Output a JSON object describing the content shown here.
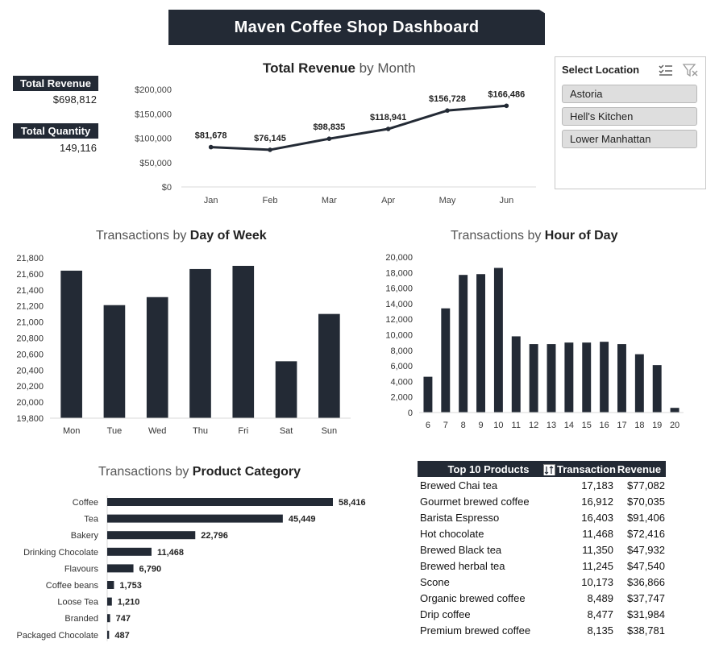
{
  "dashboard": {
    "title": "Maven Coffee Shop Dashboard"
  },
  "kpis": {
    "revenue_label": "Total Revenue",
    "revenue_value": "$698,812",
    "quantity_label": "Total Quantity",
    "quantity_value": "149,116"
  },
  "slicer": {
    "title": "Select Location",
    "icons": [
      "multi-select-icon",
      "clear-filter-icon"
    ],
    "items": [
      "Astoria",
      "Hell's Kitchen",
      "Lower Manhattan"
    ]
  },
  "revenue_chart": {
    "title_bold": "Total Revenue",
    "title_rest": "by Month"
  },
  "dow_chart": {
    "title_rest": "Transactions by",
    "title_bold": "Day of Week"
  },
  "hour_chart": {
    "title_rest": "Transactions by",
    "title_bold": "Hour of Day"
  },
  "category_chart": {
    "title_rest": "Transactions by",
    "title_bold": "Product Category"
  },
  "top_products": {
    "header": {
      "product": "Top 10 Products",
      "transactions": "Transaction",
      "revenue": "Revenue"
    },
    "sort_icon": "sort-icon",
    "rows": [
      {
        "product": "Brewed Chai tea",
        "transactions": "17,183",
        "revenue": "$77,082"
      },
      {
        "product": "Gourmet brewed coffee",
        "transactions": "16,912",
        "revenue": "$70,035"
      },
      {
        "product": "Barista Espresso",
        "transactions": "16,403",
        "revenue": "$91,406"
      },
      {
        "product": "Hot chocolate",
        "transactions": "11,468",
        "revenue": "$72,416"
      },
      {
        "product": "Brewed Black tea",
        "transactions": "11,350",
        "revenue": "$47,932"
      },
      {
        "product": "Brewed herbal tea",
        "transactions": "11,245",
        "revenue": "$47,540"
      },
      {
        "product": "Scone",
        "transactions": "10,173",
        "revenue": "$36,866"
      },
      {
        "product": "Organic brewed coffee",
        "transactions": "8,489",
        "revenue": "$37,747"
      },
      {
        "product": "Drip coffee",
        "transactions": "8,477",
        "revenue": "$31,984"
      },
      {
        "product": "Premium brewed coffee",
        "transactions": "8,135",
        "revenue": "$38,781"
      }
    ]
  },
  "colors": {
    "dark": "#232a35",
    "grid": "#d9d9d9"
  },
  "chart_data": [
    {
      "type": "line",
      "title": "Total Revenue by Month",
      "categories": [
        "Jan",
        "Feb",
        "Mar",
        "Apr",
        "May",
        "Jun"
      ],
      "values": [
        81678,
        76145,
        98835,
        118941,
        156728,
        166486
      ],
      "data_labels": [
        "$81,678",
        "$76,145",
        "$98,835",
        "$118,941",
        "$156,728",
        "$166,486"
      ],
      "yticks": [
        "$0",
        "$50,000",
        "$100,000",
        "$150,000",
        "$200,000"
      ],
      "ylim": [
        0,
        200000
      ],
      "grid": false
    },
    {
      "type": "bar",
      "title": "Transactions by Day of Week",
      "categories": [
        "Mon",
        "Tue",
        "Wed",
        "Thu",
        "Fri",
        "Sat",
        "Sun"
      ],
      "values": [
        21640,
        21210,
        21310,
        21660,
        21700,
        20510,
        21100
      ],
      "yticks": [
        "19,800",
        "20,000",
        "20,200",
        "20,400",
        "20,600",
        "20,800",
        "21,000",
        "21,200",
        "21,400",
        "21,600",
        "21,800"
      ],
      "ylim": [
        19800,
        21800
      ],
      "grid": false
    },
    {
      "type": "bar",
      "title": "Transactions by Hour of Day",
      "categories": [
        "6",
        "7",
        "8",
        "9",
        "10",
        "11",
        "12",
        "13",
        "14",
        "15",
        "16",
        "17",
        "18",
        "19",
        "20"
      ],
      "values": [
        4600,
        13400,
        17700,
        17800,
        18600,
        9800,
        8800,
        8800,
        9000,
        9000,
        9100,
        8800,
        7500,
        6100,
        600
      ],
      "yticks": [
        "0",
        "2,000",
        "4,000",
        "6,000",
        "8,000",
        "10,000",
        "12,000",
        "14,000",
        "16,000",
        "18,000",
        "20,000"
      ],
      "ylim": [
        0,
        20000
      ],
      "grid": false
    },
    {
      "type": "bar",
      "orientation": "horizontal",
      "title": "Transactions by Product Category",
      "categories": [
        "Coffee",
        "Tea",
        "Bakery",
        "Drinking Chocolate",
        "Flavours",
        "Coffee beans",
        "Loose Tea",
        "Branded",
        "Packaged Chocolate"
      ],
      "values": [
        58416,
        45449,
        22796,
        11468,
        6790,
        1753,
        1210,
        747,
        487
      ],
      "data_labels": [
        "58,416",
        "45,449",
        "22,796",
        "11,468",
        "6,790",
        "1,753",
        "1,210",
        "747",
        "487"
      ],
      "grid": false
    }
  ]
}
